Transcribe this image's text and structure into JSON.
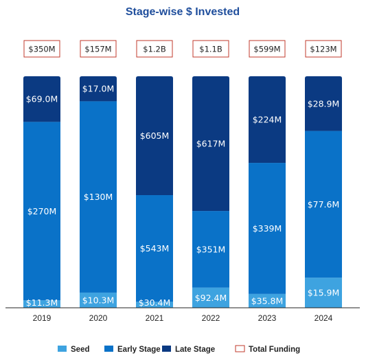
{
  "chart_data": {
    "type": "bar",
    "stacked": true,
    "title": "Stage-wise $ Invested",
    "categories": [
      "2019",
      "2020",
      "2021",
      "2022",
      "2023",
      "2024"
    ],
    "series": [
      {
        "name": "Seed",
        "color": "#3ea3e0",
        "values": [
          11.3,
          10.3,
          30.4,
          92.4,
          35.8,
          15.9
        ],
        "labels": [
          "$11.3M",
          "$10.3M",
          "$30.4M",
          "$92.4M",
          "$35.8M",
          "$15.9M"
        ]
      },
      {
        "name": "Early Stage",
        "color": "#0a72c8",
        "values": [
          270,
          130,
          543,
          351,
          339,
          77.6
        ],
        "labels": [
          "$270M",
          "$130M",
          "$543M",
          "$351M",
          "$339M",
          "$77.6M"
        ]
      },
      {
        "name": "Late Stage",
        "color": "#0b3a82",
        "values": [
          69.0,
          17.0,
          605,
          617,
          224,
          28.9
        ],
        "labels": [
          "$69.0M",
          "$17.0M",
          "$605M",
          "$617M",
          "$224M",
          "$28.9M"
        ]
      }
    ],
    "totals": {
      "name": "Total Funding",
      "border_color": "#c0392b",
      "labels": [
        "$350M",
        "$157M",
        "$1.2B",
        "$1.1B",
        "$599M",
        "$123M"
      ]
    },
    "normalized_100_percent": true,
    "legend_position": "bottom",
    "grid": false
  }
}
